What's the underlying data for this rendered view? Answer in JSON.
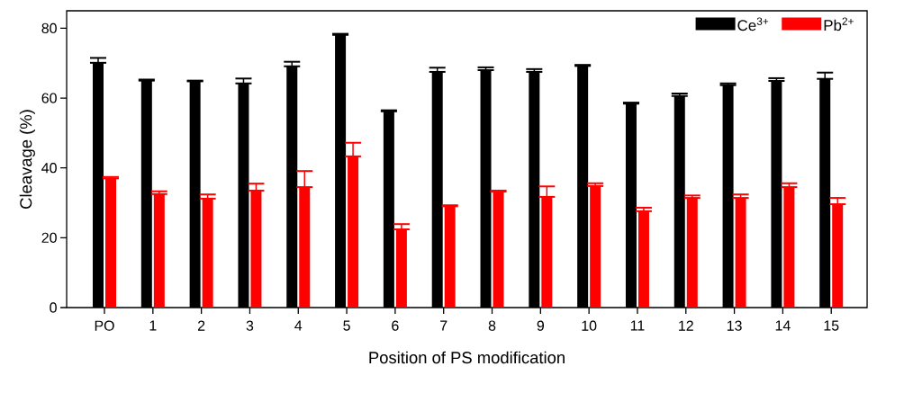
{
  "chart_data": {
    "type": "bar",
    "xlabel": "Position of PS modification",
    "ylabel": "Cleavage (%)",
    "categories": [
      "PO",
      "1",
      "2",
      "3",
      "4",
      "5",
      "6",
      "7",
      "8",
      "9",
      "10",
      "11",
      "12",
      "13",
      "14",
      "15"
    ],
    "series": [
      {
        "name": "Ce$^{3+}$",
        "color": "#000000",
        "values": [
          70.1,
          65.0,
          64.8,
          64.2,
          69.1,
          78.1,
          56.2,
          67.5,
          68.0,
          67.5,
          69.2,
          58.4,
          60.6,
          63.7,
          64.9,
          65.5
        ],
        "errors": [
          [
            70.1,
            71.5
          ],
          [
            65.0,
            65.3
          ],
          [
            64.8,
            65.0
          ],
          [
            64.2,
            65.6
          ],
          [
            69.1,
            70.4
          ],
          [
            78.1,
            78.4
          ],
          [
            56.2,
            56.5
          ],
          [
            67.5,
            68.7
          ],
          [
            68.0,
            68.8
          ],
          [
            67.5,
            68.3
          ],
          [
            69.2,
            69.5
          ],
          [
            58.4,
            58.7
          ],
          [
            60.6,
            61.3
          ],
          [
            63.7,
            64.2
          ],
          [
            64.9,
            65.7
          ],
          [
            65.5,
            67.3
          ]
        ]
      },
      {
        "name": "Pb$^{2+}$",
        "color": "#ff0000",
        "values": [
          37.0,
          32.5,
          31.2,
          33.5,
          34.5,
          43.3,
          22.4,
          29.0,
          33.2,
          31.7,
          34.8,
          27.6,
          31.4,
          31.4,
          34.5,
          29.6
        ],
        "errors": [
          [
            37.0,
            37.4
          ],
          [
            32.5,
            33.3
          ],
          [
            31.2,
            32.4
          ],
          [
            33.5,
            35.5
          ],
          [
            34.5,
            39.1
          ],
          [
            43.3,
            47.2
          ],
          [
            22.4,
            23.9
          ],
          [
            29.0,
            29.3
          ],
          [
            33.2,
            33.5
          ],
          [
            31.7,
            34.7
          ],
          [
            34.8,
            35.6
          ],
          [
            27.6,
            28.6
          ],
          [
            31.4,
            32.1
          ],
          [
            31.4,
            32.4
          ],
          [
            34.5,
            35.6
          ],
          [
            29.6,
            31.4
          ]
        ]
      }
    ],
    "ylim": [
      0,
      85
    ],
    "yticks": [
      0,
      20,
      40,
      60,
      80
    ],
    "legend": "top right"
  }
}
